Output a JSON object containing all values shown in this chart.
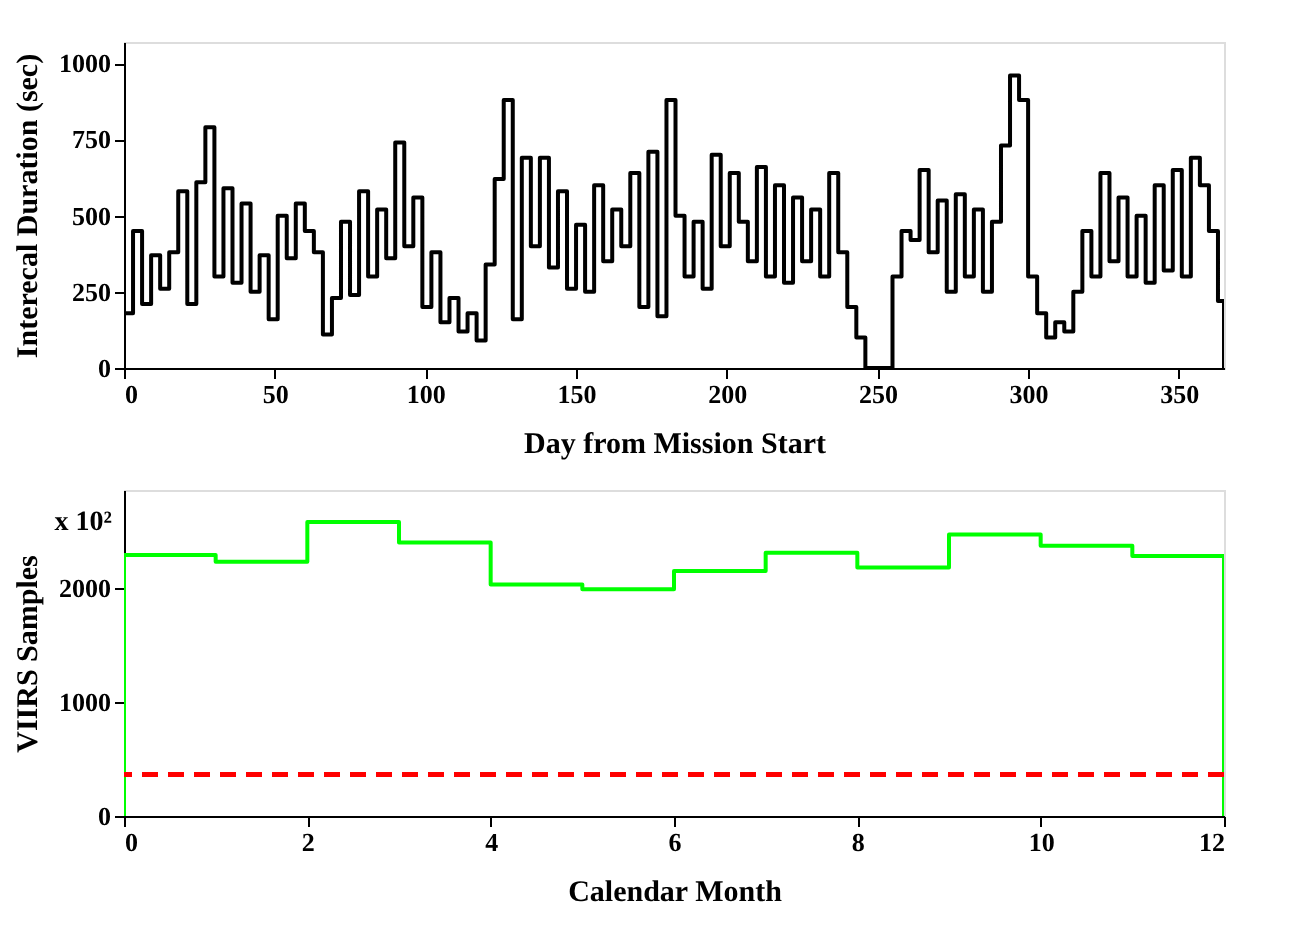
{
  "chart_data": [
    {
      "type": "histogram",
      "xlabel": "Day from Mission Start",
      "ylabel": "Interecal Duration (sec)",
      "color": "#000000",
      "xlim": [
        0,
        365
      ],
      "ylim": [
        0,
        1070
      ],
      "xticks": [
        0,
        50,
        100,
        150,
        200,
        250,
        300,
        350
      ],
      "yticks": [
        0,
        250,
        500,
        750,
        1000
      ],
      "grid": false,
      "bins": [
        0,
        3,
        6,
        9,
        12,
        15,
        18,
        21,
        24,
        27,
        30,
        33,
        36,
        39,
        42,
        45,
        48,
        51,
        54,
        57,
        60,
        63,
        66,
        69,
        72,
        75,
        78,
        81,
        84,
        87,
        90,
        93,
        96,
        99,
        102,
        105,
        108,
        111,
        114,
        117,
        120,
        123,
        126,
        129,
        132,
        135,
        138,
        141,
        144,
        147,
        150,
        153,
        156,
        159,
        162,
        165,
        168,
        171,
        174,
        177,
        180,
        183,
        186,
        189,
        192,
        195,
        198,
        201,
        204,
        207,
        210,
        213,
        216,
        219,
        222,
        225,
        228,
        231,
        234,
        237,
        240,
        243,
        246,
        249,
        252,
        255,
        258,
        261,
        264,
        267,
        270,
        273,
        276,
        279,
        282,
        285,
        288,
        291,
        294,
        297,
        300,
        303,
        306,
        309,
        312,
        315,
        318,
        321,
        324,
        327,
        330,
        333,
        336,
        339,
        342,
        345,
        348,
        351,
        354,
        357,
        360,
        363,
        365
      ],
      "values": [
        180,
        450,
        210,
        370,
        260,
        380,
        580,
        210,
        610,
        790,
        300,
        590,
        280,
        540,
        250,
        370,
        160,
        500,
        360,
        540,
        450,
        380,
        110,
        230,
        480,
        240,
        580,
        300,
        520,
        360,
        740,
        400,
        560,
        200,
        380,
        150,
        230,
        120,
        180,
        90,
        340,
        620,
        880,
        160,
        690,
        400,
        690,
        330,
        580,
        260,
        470,
        250,
        600,
        350,
        520,
        400,
        640,
        200,
        710,
        170,
        880,
        500,
        300,
        480,
        260,
        700,
        400,
        640,
        480,
        350,
        660,
        300,
        600,
        280,
        560,
        350,
        520,
        300,
        640,
        380,
        200,
        100,
        0,
        0,
        0,
        300,
        450,
        420,
        650,
        380,
        550,
        250,
        570,
        300,
        520,
        250,
        480,
        730,
        960,
        880,
        300,
        180,
        100,
        150,
        120,
        250,
        450,
        300,
        640,
        350,
        560,
        300,
        500,
        280,
        600,
        320,
        650,
        300,
        690,
        600,
        450,
        220
      ]
    },
    {
      "type": "histogram",
      "xlabel": "Calendar Month",
      "ylabel": "VIIRS Samples",
      "color": "#00ff00",
      "xlim": [
        0,
        12
      ],
      "ylim": [
        0,
        2860
      ],
      "xticks": [
        0,
        2,
        4,
        6,
        8,
        10,
        12
      ],
      "yticks": [
        0,
        1000,
        2000
      ],
      "grid": false,
      "bins": [
        0,
        1,
        2,
        3,
        4,
        5,
        6,
        7,
        8,
        9,
        10,
        11,
        12
      ],
      "values": [
        2290,
        2230,
        2580,
        2400,
        2030,
        1990,
        2150,
        2310,
        2180,
        2470,
        2370,
        2280
      ],
      "ref_lines": [
        {
          "axis": "y",
          "value": 365,
          "color": "#ff0000",
          "line_style": "dashed"
        }
      ],
      "annotations": [
        "x 10²"
      ]
    }
  ]
}
